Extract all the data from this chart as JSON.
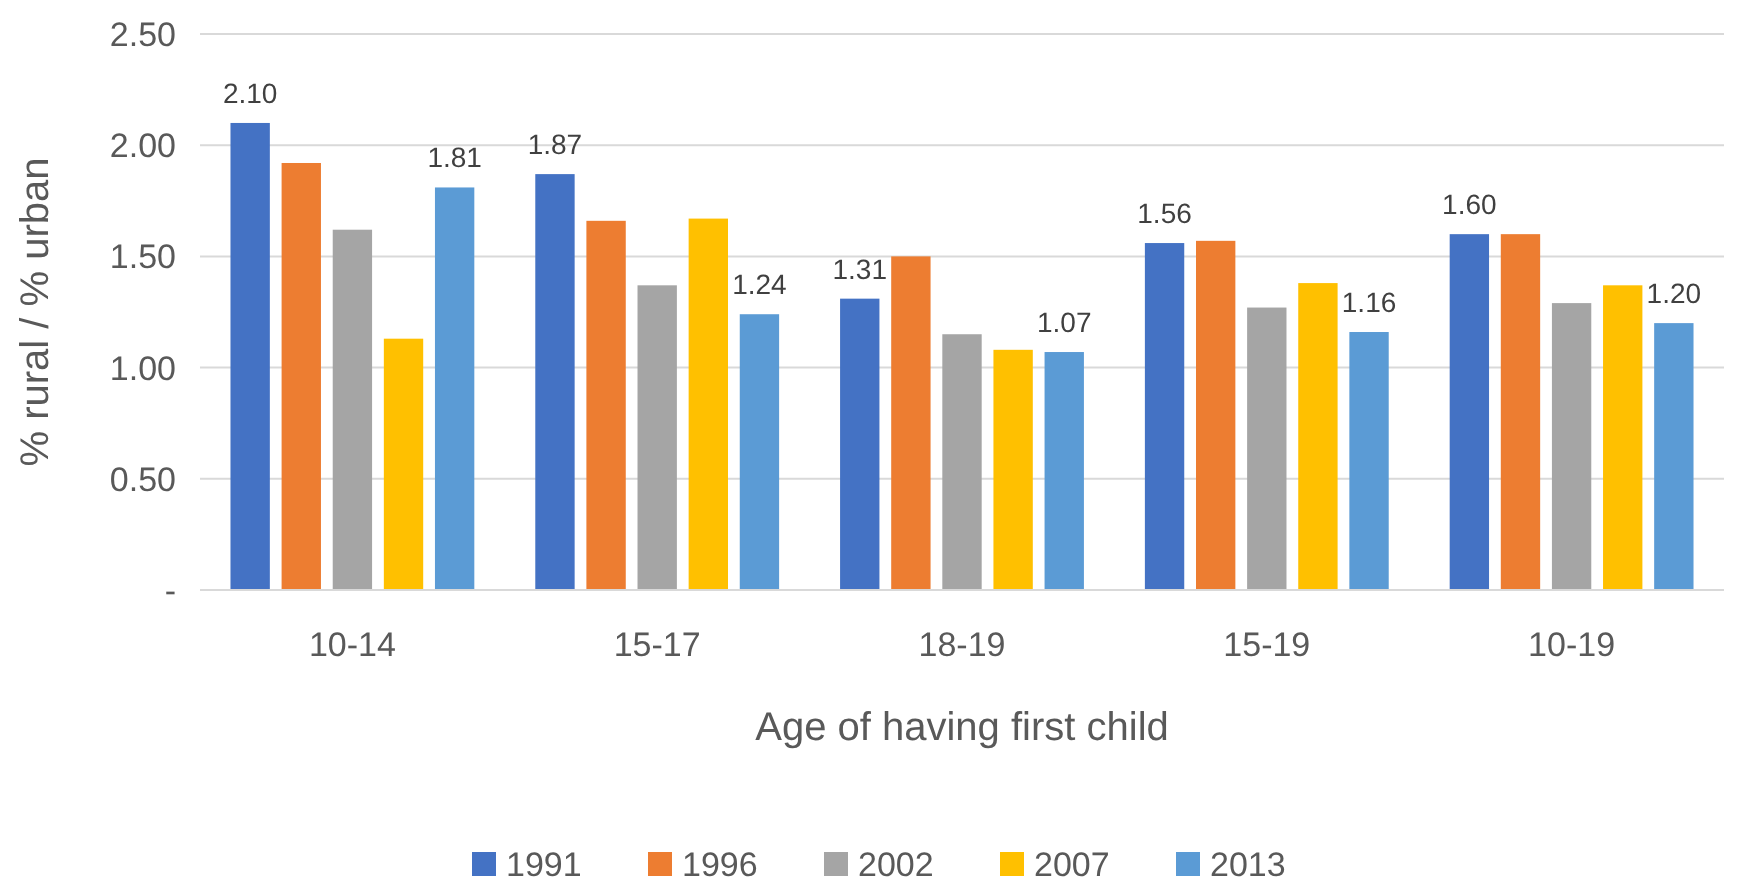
{
  "chart_data": {
    "type": "bar",
    "xlabel": "Age of having first child",
    "ylabel": "% rural / % urban",
    "categories": [
      "10-14",
      "15-17",
      "18-19",
      "15-19",
      "10-19"
    ],
    "series": [
      {
        "name": "1991",
        "color": "#4472c4",
        "values": [
          2.1,
          1.87,
          1.31,
          1.56,
          1.6
        ],
        "value_labels": [
          "2.10",
          "1.87",
          "1.31",
          "1.56",
          "1.60"
        ]
      },
      {
        "name": "1996",
        "color": "#ed7d31",
        "values": [
          1.92,
          1.66,
          1.5,
          1.57,
          1.6
        ]
      },
      {
        "name": "2002",
        "color": "#a5a5a5",
        "values": [
          1.62,
          1.37,
          1.15,
          1.27,
          1.29
        ]
      },
      {
        "name": "2007",
        "color": "#ffc000",
        "values": [
          1.13,
          1.67,
          1.08,
          1.38,
          1.37
        ]
      },
      {
        "name": "2013",
        "color": "#5b9bd5",
        "values": [
          1.81,
          1.24,
          1.07,
          1.16,
          1.2
        ],
        "value_labels": [
          "1.81",
          "1.24",
          "1.07",
          "1.16",
          "1.20"
        ]
      }
    ],
    "ylim": [
      0,
      2.5
    ],
    "yticks": [
      {
        "value": 0,
        "label": "-"
      },
      {
        "value": 0.5,
        "label": "0.50"
      },
      {
        "value": 1,
        "label": "1.00"
      },
      {
        "value": 1.5,
        "label": "1.50"
      },
      {
        "value": 2,
        "label": "2.00"
      },
      {
        "value": 2.5,
        "label": "2.50"
      }
    ],
    "grid": "y",
    "legend": "bottom"
  }
}
